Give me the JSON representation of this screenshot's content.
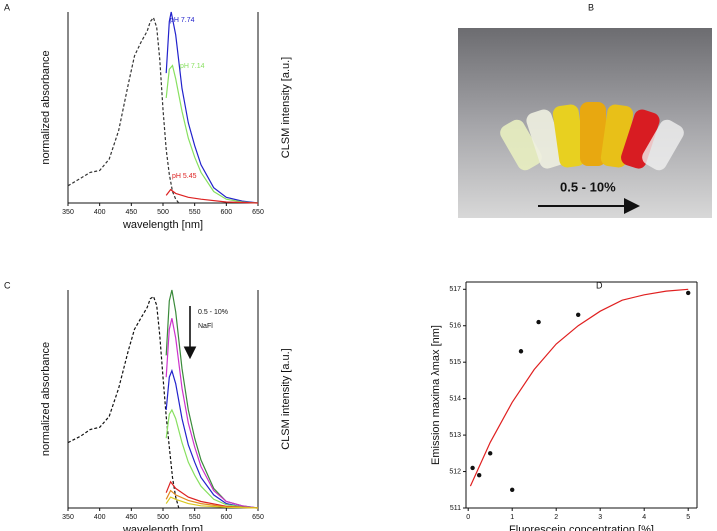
{
  "panels": [
    "A",
    "B",
    "C",
    "D"
  ],
  "photo": {
    "label": "0.5 - 10%"
  },
  "chart_data": [
    {
      "type": "line",
      "xlabel": "wavelength [nm]",
      "ylabel": "normalized absorbance",
      "y2label": "CLSM intensity [a.u.]",
      "xlim": [
        350,
        650
      ],
      "xticks": [
        350,
        400,
        450,
        500,
        550,
        600,
        650
      ],
      "ylim": [
        0,
        1
      ],
      "series": [
        {
          "color": "#333333",
          "dash": true,
          "x": [
            350,
            370,
            385,
            400,
            415,
            430,
            445,
            455,
            465,
            475,
            480,
            485,
            490,
            495,
            500,
            505,
            510,
            515,
            520,
            525
          ],
          "values": [
            0.09,
            0.13,
            0.16,
            0.17,
            0.23,
            0.38,
            0.62,
            0.77,
            0.84,
            0.9,
            0.95,
            0.97,
            0.92,
            0.75,
            0.49,
            0.28,
            0.15,
            0.06,
            0.02,
            0
          ]
        },
        {
          "name": "pH 7.74",
          "color": "#2222cc",
          "x": [
            505,
            510,
            513,
            520,
            530,
            540,
            550,
            560,
            580,
            600,
            625,
            650
          ],
          "values": [
            0.68,
            0.95,
            1.0,
            0.88,
            0.6,
            0.42,
            0.3,
            0.2,
            0.08,
            0.03,
            0.01,
            0
          ]
        },
        {
          "name": "pH 7.14",
          "color": "#88e060",
          "x": [
            505,
            510,
            515,
            520,
            530,
            540,
            550,
            560,
            580,
            600,
            625,
            650
          ],
          "values": [
            0.55,
            0.7,
            0.72,
            0.65,
            0.48,
            0.34,
            0.24,
            0.16,
            0.06,
            0.02,
            0.005,
            0
          ]
        },
        {
          "name": "pH 5.45",
          "color": "#dd2222",
          "x": [
            505,
            512,
            520,
            540,
            560,
            600,
            650
          ],
          "values": [
            0.04,
            0.07,
            0.05,
            0.03,
            0.02,
            0.005,
            0
          ]
        }
      ]
    },
    {
      "type": "line",
      "xlabel": "wavelength [nm]",
      "ylabel": "normalized absorbance",
      "y2label": "CLSM intensity [a.u.]",
      "xlim": [
        350,
        650
      ],
      "xticks": [
        350,
        400,
        450,
        500,
        550,
        600,
        650
      ],
      "ylim": [
        0,
        1
      ],
      "annotations": [
        "0.5 - 10%",
        "NaFl"
      ],
      "series": [
        {
          "color": "#111111",
          "dash": true,
          "x": [
            350,
            370,
            385,
            400,
            415,
            430,
            445,
            455,
            465,
            475,
            480,
            485,
            490,
            495,
            500,
            505,
            510,
            515,
            520,
            525
          ],
          "values": [
            0.3,
            0.33,
            0.36,
            0.37,
            0.42,
            0.55,
            0.72,
            0.82,
            0.87,
            0.92,
            0.96,
            0.97,
            0.93,
            0.79,
            0.6,
            0.42,
            0.28,
            0.14,
            0.05,
            0
          ]
        },
        {
          "color": "#3a8a3a",
          "x": [
            505,
            510,
            514,
            520,
            530,
            540,
            550,
            560,
            580,
            600,
            625,
            650
          ],
          "values": [
            0.7,
            0.95,
            1.0,
            0.9,
            0.64,
            0.45,
            0.32,
            0.22,
            0.09,
            0.03,
            0.01,
            0
          ]
        },
        {
          "color": "#cc33cc",
          "x": [
            505,
            510,
            514,
            520,
            530,
            540,
            550,
            560,
            580,
            600,
            625,
            650
          ],
          "values": [
            0.6,
            0.82,
            0.87,
            0.78,
            0.55,
            0.39,
            0.28,
            0.19,
            0.08,
            0.03,
            0.01,
            0
          ]
        },
        {
          "color": "#2222cc",
          "x": [
            505,
            510,
            514,
            520,
            530,
            540,
            550,
            560,
            580,
            600,
            625,
            650
          ],
          "values": [
            0.45,
            0.6,
            0.63,
            0.57,
            0.41,
            0.29,
            0.21,
            0.14,
            0.06,
            0.02,
            0.005,
            0
          ]
        },
        {
          "color": "#88e060",
          "x": [
            505,
            510,
            514,
            520,
            530,
            540,
            550,
            560,
            580,
            600,
            625,
            650
          ],
          "values": [
            0.32,
            0.43,
            0.45,
            0.41,
            0.3,
            0.21,
            0.15,
            0.1,
            0.04,
            0.015,
            0.005,
            0
          ]
        },
        {
          "color": "#dd2222",
          "x": [
            505,
            512,
            520,
            540,
            560,
            600,
            650
          ],
          "values": [
            0.07,
            0.12,
            0.09,
            0.05,
            0.03,
            0.008,
            0
          ]
        },
        {
          "color": "#e08a20",
          "x": [
            505,
            512,
            520,
            540,
            560,
            600,
            650
          ],
          "values": [
            0.04,
            0.08,
            0.06,
            0.035,
            0.02,
            0.005,
            0
          ]
        },
        {
          "color": "#d8c820",
          "x": [
            505,
            512,
            520,
            540,
            560,
            600,
            650
          ],
          "values": [
            0.02,
            0.05,
            0.04,
            0.02,
            0.01,
            0.003,
            0
          ]
        }
      ]
    },
    {
      "type": "scatter",
      "xlabel": "Fluorescein concentration [%]",
      "ylabel": "Emission  maxima λmax [nm]",
      "xlim": [
        -0.05,
        5.2
      ],
      "xticks": [
        0,
        1,
        2,
        3,
        4,
        5
      ],
      "ylim": [
        511,
        517.2
      ],
      "yticks": [
        511,
        512,
        513,
        514,
        515,
        516,
        517
      ],
      "series": [
        {
          "type": "scatter",
          "color": "#111111",
          "x": [
            0.1,
            0.25,
            0.5,
            1.0,
            1.2,
            1.6,
            2.5,
            5.0
          ],
          "values": [
            512.1,
            511.9,
            512.5,
            511.5,
            515.3,
            516.1,
            516.3,
            516.9
          ]
        },
        {
          "type": "line",
          "color": "#e02020",
          "x": [
            0.05,
            0.5,
            1,
            1.5,
            2,
            2.5,
            3,
            3.5,
            4,
            4.5,
            5
          ],
          "values": [
            511.6,
            512.8,
            513.9,
            514.8,
            515.5,
            516.0,
            516.4,
            516.7,
            516.85,
            516.95,
            517.0
          ]
        }
      ]
    }
  ]
}
